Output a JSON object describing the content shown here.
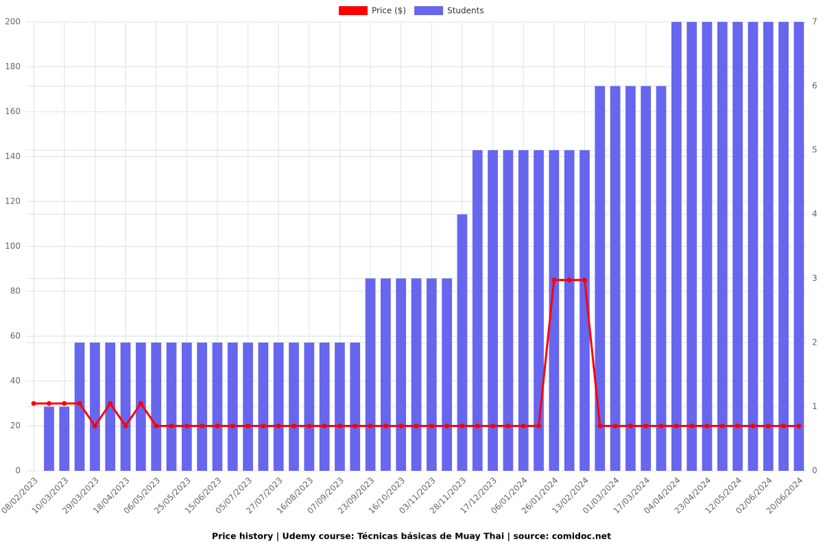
{
  "chart_data": {
    "type": "bar",
    "title": "Price history | Udemy course: Técnicas básicas de Muay Thai | source: comidoc.net",
    "categories": [
      "08/02/2023",
      null,
      "10/03/2023",
      null,
      "29/03/2023",
      null,
      "18/04/2023",
      null,
      "06/05/2023",
      null,
      "25/05/2023",
      null,
      "15/06/2023",
      null,
      "05/07/2023",
      null,
      "27/07/2023",
      null,
      "16/08/2023",
      null,
      "07/09/2023",
      null,
      "23/09/2023",
      null,
      "16/10/2023",
      null,
      "03/11/2023",
      null,
      "28/11/2023",
      null,
      "17/12/2023",
      null,
      "06/01/2024",
      null,
      "26/01/2024",
      null,
      "13/02/2024",
      null,
      "01/03/2024",
      null,
      "17/03/2024",
      null,
      "04/04/2024",
      null,
      "23/04/2024",
      null,
      "12/05/2024",
      null,
      "02/06/2024",
      null,
      "20/06/2024"
    ],
    "series": [
      {
        "name": "Price ($)",
        "type": "line",
        "color": "#ff0000",
        "values": [
          30,
          30,
          30,
          30,
          20,
          30,
          20,
          30,
          20,
          20,
          20,
          20,
          20,
          20,
          20,
          20,
          20,
          20,
          20,
          20,
          20,
          20,
          20,
          20,
          20,
          20,
          20,
          20,
          20,
          20,
          20,
          20,
          20,
          20,
          85,
          85,
          85,
          20,
          20,
          20,
          20,
          20,
          20,
          20,
          20,
          20,
          20,
          20,
          20,
          20,
          20
        ]
      },
      {
        "name": "Students",
        "type": "bar",
        "axis": "y2",
        "color": "#6666ee",
        "values": [
          0,
          1,
          1,
          2,
          2,
          2,
          2,
          2,
          2,
          2,
          2,
          2,
          2,
          2,
          2,
          2,
          2,
          2,
          2,
          2,
          2,
          2,
          3,
          3,
          3,
          3,
          3,
          3,
          4,
          5,
          5,
          5,
          5,
          5,
          5,
          5,
          5,
          6,
          6,
          6,
          6,
          6,
          7,
          7,
          7,
          7,
          7,
          7,
          7,
          7,
          7
        ]
      }
    ],
    "ylim": [
      0,
      200
    ],
    "yticks": [
      0,
      20,
      40,
      60,
      80,
      100,
      120,
      140,
      160,
      180,
      200
    ],
    "y2lim": [
      0,
      7
    ],
    "y2ticks": [
      0,
      1,
      2,
      3,
      4,
      5,
      6,
      7
    ],
    "grid": true,
    "legend": "top"
  }
}
